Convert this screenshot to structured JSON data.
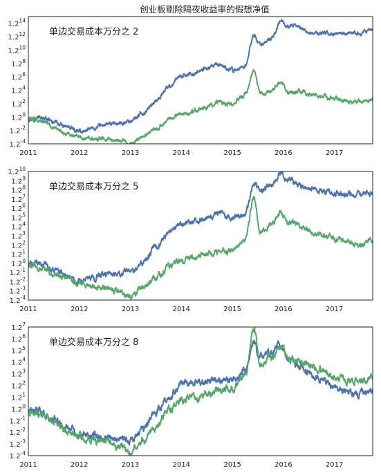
{
  "figure": {
    "title": "创业板剔除隔夜收益率的假想净值"
  },
  "colors": {
    "blue": "#4c72b0",
    "green": "#55a868",
    "axis": "#222222"
  },
  "chart_data": [
    {
      "type": "line",
      "annotation": "单边交易成本万分之 2",
      "yscale": "log base 1.2",
      "xlim": [
        2011.0,
        2017.75
      ],
      "x_ticks": [
        2011,
        2012,
        2013,
        2014,
        2015,
        2016,
        2017
      ],
      "ylim_exponent": [
        -4,
        15
      ],
      "y_ticks_exponent": [
        -4,
        -2,
        0,
        2,
        4,
        6,
        8,
        10,
        12,
        14
      ],
      "grid": false,
      "series": [
        {
          "color": "#4c72b0",
          "x": [
            2011.0,
            2011.25,
            2011.5,
            2011.75,
            2012.0,
            2012.25,
            2012.5,
            2012.75,
            2013.0,
            2013.25,
            2013.5,
            2013.75,
            2014.0,
            2014.25,
            2014.5,
            2014.75,
            2015.0,
            2015.25,
            2015.42,
            2015.55,
            2015.75,
            2015.95,
            2016.1,
            2016.3,
            2016.5,
            2016.75,
            2017.0,
            2017.25,
            2017.5,
            2017.75
          ],
          "y_exponent": [
            -0.2,
            0.0,
            -0.8,
            -1.5,
            -2.2,
            -1.8,
            -1.2,
            -1.0,
            -0.6,
            0.6,
            2.4,
            4.6,
            6.0,
            6.6,
            7.2,
            7.8,
            7.0,
            7.6,
            12.2,
            10.8,
            11.6,
            14.2,
            13.5,
            13.4,
            12.6,
            12.5,
            12.4,
            12.3,
            12.6,
            12.9
          ]
        },
        {
          "color": "#55a868",
          "x": [
            2011.0,
            2011.25,
            2011.5,
            2011.75,
            2012.0,
            2012.25,
            2012.5,
            2012.75,
            2013.0,
            2013.25,
            2013.5,
            2013.75,
            2014.0,
            2014.25,
            2014.5,
            2014.75,
            2015.0,
            2015.25,
            2015.42,
            2015.55,
            2015.75,
            2015.95,
            2016.1,
            2016.3,
            2016.5,
            2016.75,
            2017.0,
            2017.25,
            2017.5,
            2017.75
          ],
          "y_exponent": [
            -0.2,
            -0.5,
            -1.6,
            -2.4,
            -3.0,
            -3.4,
            -3.2,
            -3.5,
            -4.0,
            -2.8,
            -1.8,
            -0.4,
            0.4,
            0.9,
            1.5,
            2.0,
            1.9,
            3.4,
            6.8,
            3.2,
            4.0,
            5.1,
            3.6,
            3.8,
            3.4,
            3.1,
            2.8,
            2.4,
            2.3,
            2.6
          ]
        }
      ]
    },
    {
      "type": "line",
      "annotation": "单边交易成本万分之 5",
      "yscale": "log base 1.2",
      "xlim": [
        2011.0,
        2017.75
      ],
      "x_ticks": [
        2011,
        2012,
        2013,
        2014,
        2015,
        2016,
        2017
      ],
      "ylim_exponent": [
        -4,
        10
      ],
      "y_ticks_exponent": [
        -4,
        -3,
        -2,
        -1,
        0,
        1,
        2,
        3,
        4,
        5,
        6,
        7,
        8,
        9,
        10
      ],
      "grid": false,
      "series": [
        {
          "color": "#4c72b0",
          "x": [
            2011.0,
            2011.25,
            2011.5,
            2011.75,
            2012.0,
            2012.25,
            2012.5,
            2012.75,
            2013.0,
            2013.25,
            2013.5,
            2013.75,
            2014.0,
            2014.25,
            2014.5,
            2014.75,
            2015.0,
            2015.25,
            2015.42,
            2015.55,
            2015.75,
            2015.95,
            2016.1,
            2016.3,
            2016.5,
            2016.75,
            2017.0,
            2017.25,
            2017.5,
            2017.75
          ],
          "y_exponent": [
            -0.1,
            0.0,
            -0.7,
            -1.3,
            -1.9,
            -1.6,
            -1.1,
            -1.2,
            -0.9,
            0.2,
            1.7,
            3.3,
            4.2,
            4.6,
            5.0,
            5.4,
            4.9,
            5.4,
            8.8,
            7.9,
            8.5,
            9.8,
            9.0,
            8.6,
            8.1,
            7.9,
            7.7,
            7.5,
            7.4,
            7.7
          ]
        },
        {
          "color": "#55a868",
          "x": [
            2011.0,
            2011.25,
            2011.5,
            2011.75,
            2012.0,
            2012.25,
            2012.5,
            2012.75,
            2013.0,
            2013.25,
            2013.5,
            2013.75,
            2014.0,
            2014.25,
            2014.5,
            2014.75,
            2015.0,
            2015.25,
            2015.42,
            2015.55,
            2015.75,
            2015.95,
            2016.1,
            2016.3,
            2016.5,
            2016.75,
            2017.0,
            2017.25,
            2017.5,
            2017.75
          ],
          "y_exponent": [
            -0.1,
            -0.4,
            -1.2,
            -1.6,
            -2.2,
            -2.5,
            -2.6,
            -2.9,
            -3.7,
            -2.6,
            -1.6,
            -0.4,
            0.3,
            0.6,
            1.0,
            1.3,
            1.4,
            2.5,
            7.0,
            3.2,
            4.2,
            5.5,
            4.4,
            4.1,
            3.4,
            3.1,
            2.6,
            2.4,
            2.1,
            2.5
          ]
        }
      ]
    },
    {
      "type": "line",
      "annotation": "单边交易成本万分之 8",
      "yscale": "log base 1.2",
      "xlim": [
        2011.0,
        2017.75
      ],
      "x_ticks": [
        2011,
        2012,
        2013,
        2014,
        2015,
        2016,
        2017
      ],
      "ylim_exponent": [
        -4,
        7
      ],
      "y_ticks_exponent": [
        -4,
        -3,
        -2,
        -1,
        0,
        1,
        2,
        3,
        4,
        5,
        6,
        7
      ],
      "grid": false,
      "series": [
        {
          "color": "#4c72b0",
          "x": [
            2011.0,
            2011.25,
            2011.5,
            2011.75,
            2012.0,
            2012.25,
            2012.5,
            2012.75,
            2013.0,
            2013.25,
            2013.5,
            2013.75,
            2014.0,
            2014.25,
            2014.5,
            2014.75,
            2015.0,
            2015.25,
            2015.42,
            2015.55,
            2015.75,
            2015.95,
            2016.1,
            2016.3,
            2016.5,
            2016.75,
            2017.0,
            2017.25,
            2017.5,
            2017.75
          ],
          "y_exponent": [
            -0.2,
            -0.2,
            -1.0,
            -1.5,
            -2.2,
            -2.2,
            -2.4,
            -2.5,
            -2.8,
            -1.7,
            -0.3,
            1.0,
            2.2,
            2.2,
            2.4,
            2.6,
            2.4,
            3.3,
            5.6,
            4.4,
            4.8,
            5.6,
            4.3,
            3.8,
            3.2,
            2.5,
            1.8,
            1.4,
            1.3,
            1.5
          ]
        },
        {
          "color": "#55a868",
          "x": [
            2011.0,
            2011.25,
            2011.5,
            2011.75,
            2012.0,
            2012.25,
            2012.5,
            2012.75,
            2013.0,
            2013.25,
            2013.5,
            2013.75,
            2014.0,
            2014.25,
            2014.5,
            2014.75,
            2015.0,
            2015.25,
            2015.42,
            2015.55,
            2015.75,
            2015.95,
            2016.1,
            2016.3,
            2016.5,
            2016.75,
            2017.0,
            2017.25,
            2017.5,
            2017.75
          ],
          "y_exponent": [
            -0.2,
            -0.4,
            -1.1,
            -1.8,
            -2.4,
            -2.6,
            -2.8,
            -3.0,
            -3.9,
            -2.7,
            -1.5,
            0.0,
            0.7,
            1.0,
            1.3,
            1.6,
            1.7,
            2.9,
            7.0,
            3.4,
            4.6,
            5.4,
            4.2,
            4.1,
            3.7,
            3.3,
            2.7,
            2.4,
            2.3,
            2.7
          ]
        }
      ]
    }
  ]
}
